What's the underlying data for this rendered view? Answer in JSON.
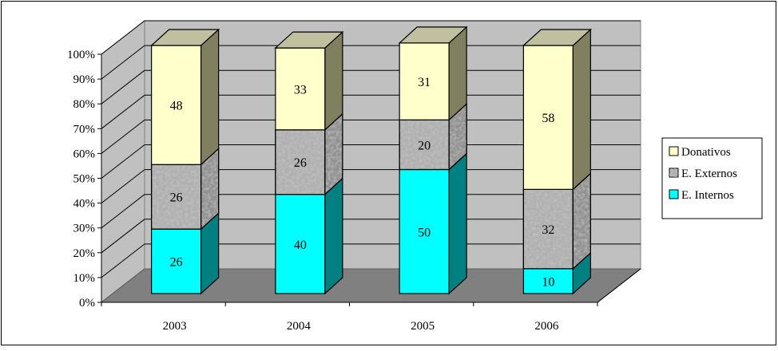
{
  "chart_data": {
    "type": "bar",
    "stacked": true,
    "percent": true,
    "style": "3d",
    "categories": [
      "2003",
      "2004",
      "2005",
      "2006"
    ],
    "series": [
      {
        "name": "E. Internos",
        "values": [
          26,
          40,
          50,
          10
        ],
        "color": "#00FFFF",
        "side_color": "#008080",
        "pattern": "solid"
      },
      {
        "name": "E. Externos",
        "values": [
          26,
          26,
          20,
          32
        ],
        "color": "#B0B0B0",
        "side_color": "#909090",
        "pattern": "granite"
      },
      {
        "name": "Donativos",
        "values": [
          48,
          33,
          31,
          58
        ],
        "color": "#FFFFCC",
        "side_color": "#808060",
        "pattern": "solid"
      }
    ],
    "y_ticks": [
      "0%",
      "10%",
      "20%",
      "30%",
      "40%",
      "50%",
      "60%",
      "70%",
      "80%",
      "90%",
      "100%"
    ],
    "ylim": [
      0,
      100
    ],
    "grid": true,
    "legend": {
      "position": "right",
      "order": [
        "Donativos",
        "E. Externos",
        "E. Internos"
      ]
    },
    "wall_color": "#C0C0C0",
    "floor_color": "#808080"
  }
}
